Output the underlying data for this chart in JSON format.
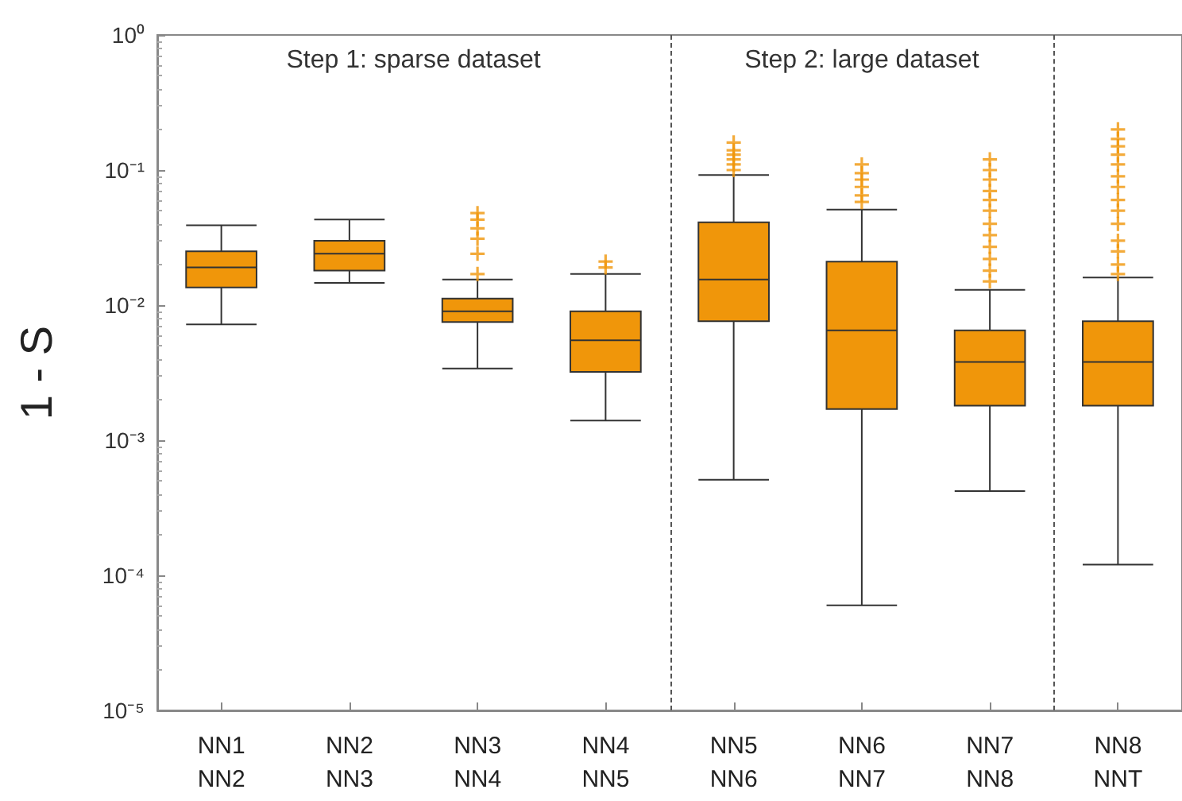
{
  "chart_data": {
    "type": "box",
    "ylabel": "1 - S",
    "categories": [
      "NN1\nNN2",
      "NN2\nNN3",
      "NN3\nNN4",
      "NN4\nNN5",
      "NN5\nNN6",
      "NN6\nNN7",
      "NN7\nNN8",
      "NN8\nNNT"
    ],
    "color": "#f0960a",
    "log": true,
    "grid": false,
    "ylim": [
      1e-05,
      1
    ],
    "yticks": [
      {
        "value": 1e-05,
        "label": "10⁻⁵"
      },
      {
        "value": 0.0001,
        "label": "10⁻⁴"
      },
      {
        "value": 0.001,
        "label": "10⁻³"
      },
      {
        "value": 0.01,
        "label": "10⁻²"
      },
      {
        "value": 0.1,
        "label": "10⁻¹"
      },
      {
        "value": 1,
        "label": "10⁰"
      }
    ],
    "boxes": [
      {
        "low": 0.0072,
        "q1": 0.0135,
        "median": 0.019,
        "q3": 0.025,
        "high": 0.039
      },
      {
        "low": 0.0146,
        "q1": 0.018,
        "median": 0.024,
        "q3": 0.03,
        "high": 0.043
      },
      {
        "low": 0.0034,
        "q1": 0.0075,
        "median": 0.009,
        "q3": 0.0112,
        "high": 0.0155,
        "outliers": [
          0.048,
          0.043,
          0.037,
          0.031,
          0.024,
          0.017
        ]
      },
      {
        "low": 0.0014,
        "q1": 0.0032,
        "median": 0.0055,
        "q3": 0.009,
        "high": 0.017,
        "outliers": [
          0.021,
          0.019
        ]
      },
      {
        "low": 0.00051,
        "q1": 0.0076,
        "median": 0.0155,
        "q3": 0.041,
        "high": 0.092,
        "outliers": [
          0.16,
          0.14,
          0.13,
          0.12,
          0.11,
          0.1
        ]
      },
      {
        "low": 6e-05,
        "q1": 0.0017,
        "median": 0.0065,
        "q3": 0.021,
        "high": 0.051,
        "outliers": [
          0.11,
          0.095,
          0.085,
          0.075,
          0.065,
          0.058
        ]
      },
      {
        "low": 0.00042,
        "q1": 0.0018,
        "median": 0.0038,
        "q3": 0.0065,
        "high": 0.013,
        "outliers": [
          0.12,
          0.1,
          0.085,
          0.07,
          0.06,
          0.05,
          0.04,
          0.033,
          0.027,
          0.022,
          0.018,
          0.015
        ]
      },
      {
        "low": 0.00012,
        "q1": 0.0018,
        "median": 0.0038,
        "q3": 0.0076,
        "high": 0.016,
        "outliers": [
          0.2,
          0.17,
          0.15,
          0.13,
          0.11,
          0.09,
          0.075,
          0.06,
          0.05,
          0.04,
          0.03,
          0.025,
          0.02,
          0.017
        ]
      }
    ],
    "annotations": [
      "Step 1: sparse dataset",
      "Step 2: large dataset"
    ]
  }
}
